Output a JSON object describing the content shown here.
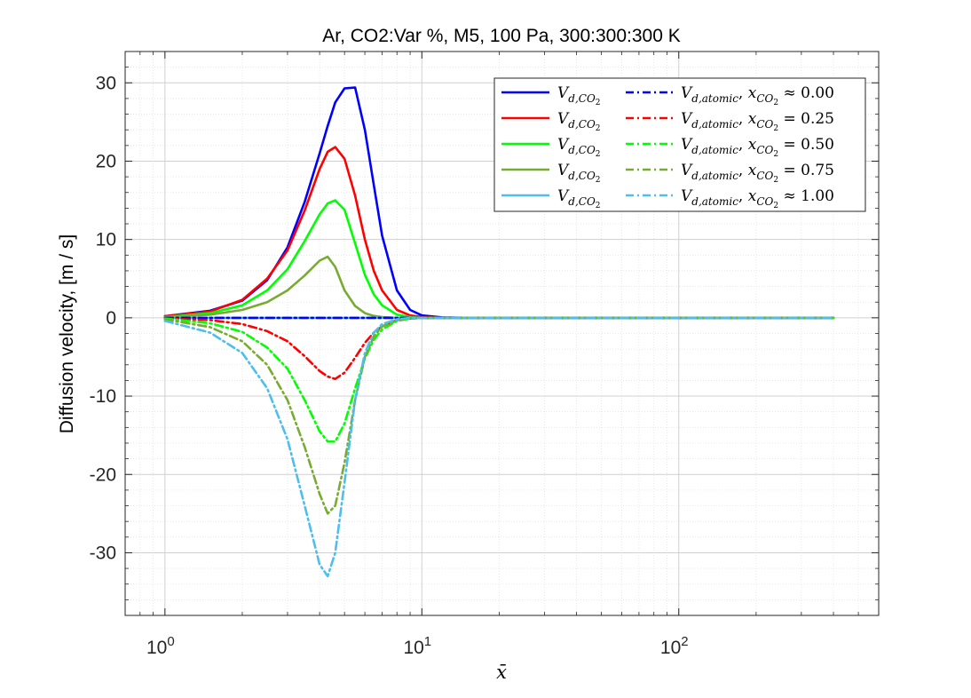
{
  "chart_data": {
    "type": "line",
    "title": "Ar, CO2:Var %, M5, 100 Pa, 300:300:300 K",
    "xlabel": "x̄",
    "ylabel": "Diffusion velocity, [m / s]",
    "xscale": "log",
    "xlim": [
      0.7,
      600
    ],
    "ylim": [
      -38,
      34
    ],
    "grid": true,
    "minor_grid": true,
    "legend_position": "top-right",
    "xticks": [
      {
        "value": 1,
        "base": "10",
        "exp": "0"
      },
      {
        "value": 10,
        "base": "10",
        "exp": "1"
      },
      {
        "value": 100,
        "base": "10",
        "exp": "2"
      }
    ],
    "yticks": [
      {
        "value": 30,
        "label": "30"
      },
      {
        "value": 20,
        "label": "20"
      },
      {
        "value": 10,
        "label": "10"
      },
      {
        "value": 0,
        "label": "0"
      },
      {
        "value": -10,
        "label": "-10"
      },
      {
        "value": -20,
        "label": "-20"
      },
      {
        "value": -30,
        "label": "-30"
      }
    ],
    "x": [
      1.0,
      1.5,
      2.0,
      2.5,
      3.0,
      3.5,
      4.0,
      4.3,
      4.6,
      5.0,
      5.5,
      6.0,
      6.5,
      7.0,
      8.0,
      9.0,
      10.0,
      12.0,
      15.0,
      20.0,
      50.0,
      100.0,
      200.0,
      400.0
    ],
    "series": [
      {
        "name": "V_{d,CO2}",
        "legend_main": "V",
        "legend_sub": "d,CO",
        "legend_sub2": "2",
        "color": "#0000ff",
        "style": "solid",
        "values": [
          0.2,
          0.9,
          2.2,
          4.8,
          9.0,
          14.8,
          21.0,
          24.5,
          27.5,
          29.3,
          29.4,
          24.0,
          17.0,
          10.5,
          3.5,
          1.0,
          0.3,
          0.05,
          0,
          0,
          0,
          0,
          0,
          0
        ]
      },
      {
        "name": "V_{d,CO2}",
        "legend_main": "V",
        "legend_sub": "d,CO",
        "legend_sub2": "2",
        "color": "#ff0000",
        "style": "solid",
        "values": [
          0.2,
          0.8,
          2.3,
          5.0,
          8.6,
          13.7,
          19.0,
          21.2,
          21.8,
          20.3,
          15.6,
          10.0,
          6.0,
          3.5,
          1.0,
          0.3,
          0.1,
          0,
          0,
          0,
          0,
          0,
          0,
          0
        ]
      },
      {
        "name": "V_{d,CO2}",
        "legend_main": "V",
        "legend_sub": "d,CO",
        "legend_sub2": "2",
        "color": "#00ff00",
        "style": "solid",
        "values": [
          0.1,
          0.6,
          1.6,
          3.5,
          6.2,
          9.8,
          13.2,
          14.6,
          15.0,
          13.8,
          9.5,
          5.5,
          3.0,
          1.6,
          0.4,
          0.1,
          0,
          0,
          0,
          0,
          0,
          0,
          0,
          0
        ]
      },
      {
        "name": "V_{d,CO2}",
        "legend_main": "V",
        "legend_sub": "d,CO",
        "legend_sub2": "2",
        "color": "#77ac30",
        "style": "solid",
        "values": [
          0.1,
          0.4,
          1.0,
          2.0,
          3.5,
          5.4,
          7.3,
          7.8,
          6.5,
          3.5,
          1.5,
          0.6,
          0.25,
          0.1,
          0,
          0,
          0,
          0,
          0,
          0,
          0,
          0,
          0,
          0
        ]
      },
      {
        "name": "V_{d,CO2}",
        "legend_main": "V",
        "legend_sub": "d,CO",
        "legend_sub2": "2",
        "color": "#4dbeee",
        "style": "solid",
        "values": [
          0,
          0,
          0,
          0,
          0,
          0,
          0,
          0,
          0,
          0,
          0,
          0,
          0,
          0,
          0,
          0,
          0,
          0,
          0,
          0,
          0,
          0,
          0,
          0
        ]
      },
      {
        "name": "V_{d,atomic}, x_{CO2} ≈ 0.00",
        "legend_main": "V",
        "legend_sub": "d,atomic",
        "legend_x": "x",
        "legend_xsub": "CO",
        "legend_xsub2": "2",
        "legend_rel": "≈",
        "legend_val": "0.00",
        "color": "#0000ff",
        "style": "dashdot",
        "values": [
          0,
          0,
          0,
          0,
          0,
          0,
          0,
          0,
          0,
          0,
          0,
          0,
          0,
          0,
          0,
          0,
          0,
          0,
          0,
          0,
          0,
          0,
          0,
          0
        ]
      },
      {
        "name": "V_{d,atomic}, x_{CO2} = 0.25",
        "legend_main": "V",
        "legend_sub": "d,atomic",
        "legend_x": "x",
        "legend_xsub": "CO",
        "legend_xsub2": "2",
        "legend_rel": "=",
        "legend_val": "0.25",
        "color": "#ff0000",
        "style": "dashdot",
        "values": [
          -0.1,
          -0.3,
          -0.8,
          -1.7,
          -3.0,
          -4.9,
          -6.8,
          -7.5,
          -7.8,
          -7.0,
          -5.1,
          -3.2,
          -1.9,
          -1.1,
          -0.3,
          -0.1,
          0,
          0,
          0,
          0,
          0,
          0,
          0,
          0
        ]
      },
      {
        "name": "V_{d,atomic}, x_{CO2} = 0.50",
        "legend_main": "V",
        "legend_sub": "d,atomic",
        "legend_x": "x",
        "legend_xsub": "CO",
        "legend_xsub2": "2",
        "legend_rel": "=",
        "legend_val": "0.50",
        "color": "#00ff00",
        "style": "dashdot",
        "values": [
          -0.1,
          -0.7,
          -1.8,
          -3.8,
          -6.5,
          -10.5,
          -14.5,
          -15.8,
          -15.8,
          -13.5,
          -9.0,
          -5.2,
          -2.8,
          -1.5,
          -0.4,
          -0.1,
          0,
          0,
          0,
          0,
          0,
          0,
          0,
          0
        ]
      },
      {
        "name": "V_{d,atomic}, x_{CO2} = 0.75",
        "legend_main": "V",
        "legend_sub": "d,atomic",
        "legend_x": "x",
        "legend_xsub": "CO",
        "legend_xsub2": "2",
        "legend_rel": "=",
        "legend_val": "0.75",
        "color": "#77ac30",
        "style": "dashdot",
        "values": [
          -0.2,
          -1.2,
          -3.0,
          -6.0,
          -10.5,
          -16.5,
          -22.5,
          -25.0,
          -24.0,
          -18.5,
          -10.5,
          -5.0,
          -2.4,
          -1.1,
          -0.3,
          -0.1,
          0,
          0,
          0,
          0,
          0,
          0,
          0,
          0
        ]
      },
      {
        "name": "V_{d,atomic}, x_{CO2} ≈ 1.00",
        "legend_main": "V",
        "legend_sub": "d,atomic",
        "legend_x": "x",
        "legend_xsub": "CO",
        "legend_xsub2": "2",
        "legend_rel": "≈",
        "legend_val": "1.00",
        "color": "#4dbeee",
        "style": "dashdot",
        "values": [
          -0.4,
          -1.9,
          -4.5,
          -9.0,
          -15.5,
          -24.0,
          -31.5,
          -33.0,
          -30.0,
          -21.0,
          -10.5,
          -4.5,
          -1.9,
          -0.8,
          -0.2,
          0,
          0,
          0,
          0,
          0,
          0,
          0,
          0,
          0
        ]
      }
    ]
  }
}
